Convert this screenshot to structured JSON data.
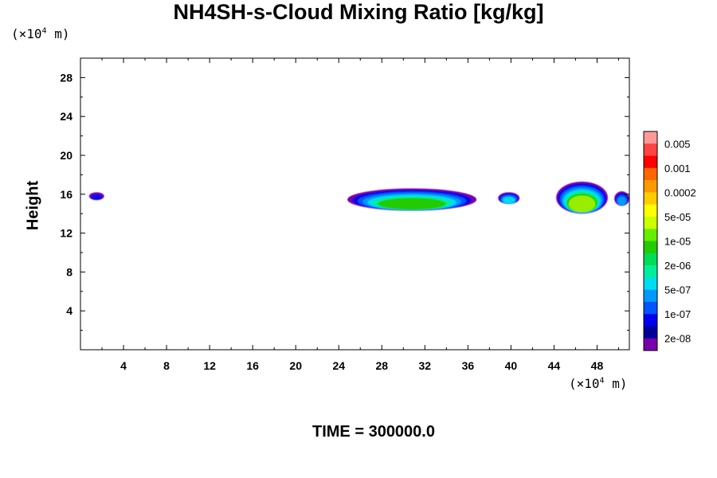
{
  "chart_data": {
    "type": "heatmap",
    "title": "NH4SH-s-Cloud Mixing Ratio [kg/kg]",
    "ylabel": "Height",
    "x_unit_text": "(×10",
    "x_unit_exp": "4",
    "x_unit_suffix": " m)",
    "y_unit_text": "(×10",
    "y_unit_exp": "4",
    "y_unit_suffix": " m)",
    "footer": "TIME = 300000.0",
    "xlim": [
      0,
      51
    ],
    "ylim": [
      0,
      30
    ],
    "x_ticks": [
      4,
      8,
      12,
      16,
      20,
      24,
      28,
      32,
      36,
      40,
      44,
      48
    ],
    "y_ticks": [
      4,
      8,
      12,
      16,
      20,
      24,
      28
    ],
    "colorbar": {
      "labels": [
        "0.005",
        "0.001",
        "0.0002",
        "5e-05",
        "1e-05",
        "2e-06",
        "5e-07",
        "1e-07",
        "2e-08"
      ],
      "colors": [
        "#ff9999",
        "#ff4444",
        "#ff0000",
        "#ff6600",
        "#ff9900",
        "#ffcc00",
        "#ffff00",
        "#ccff00",
        "#66ee00",
        "#22cc00",
        "#00dd55",
        "#00ee99",
        "#00ddee",
        "#0099ff",
        "#0055ff",
        "#0000ee",
        "#000099",
        "#7700aa"
      ]
    },
    "cloud_regions": [
      {
        "x": [
          0.8,
          2.2
        ],
        "y": [
          15.4,
          16.2
        ],
        "peak_level": 1
      },
      {
        "x": [
          24.8,
          36.8
        ],
        "y": [
          14.3,
          16.6
        ],
        "peak_level": 6
      },
      {
        "x": [
          38.8,
          40.8
        ],
        "y": [
          15.0,
          16.2
        ],
        "peak_level": 4
      },
      {
        "x": [
          44.2,
          49.0
        ],
        "y": [
          14.0,
          17.3
        ],
        "peak_level": 7
      },
      {
        "x": [
          49.6,
          51.0
        ],
        "y": [
          14.8,
          16.3
        ],
        "peak_level": 3
      }
    ]
  }
}
